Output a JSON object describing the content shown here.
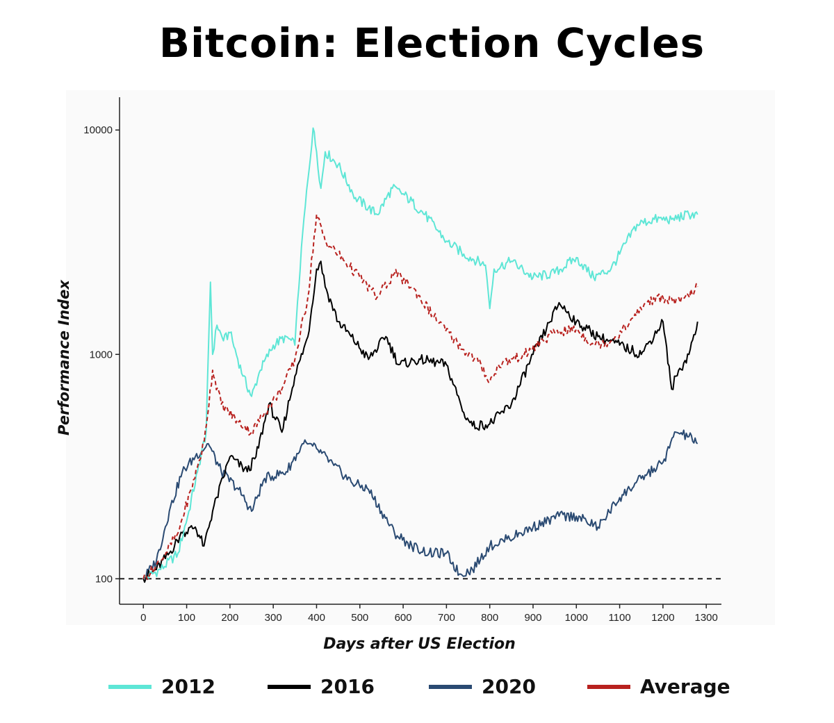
{
  "title": "Bitcoin: Election Cycles",
  "colors": {
    "2012": "#5ee6d6",
    "2016": "#000000",
    "2020": "#2a4a72",
    "Average": "#b8211e"
  },
  "legend": [
    {
      "name": "2012",
      "color": "#5ee6d6"
    },
    {
      "name": "2016",
      "color": "#000000"
    },
    {
      "name": "2020",
      "color": "#2a4a72"
    },
    {
      "name": "Average",
      "color": "#b8211e"
    }
  ],
  "chart_data": {
    "type": "line",
    "xlabel": "Days after US Election",
    "ylabel": "Performance Index",
    "xlim": [
      -55,
      1335
    ],
    "ylim": [
      77,
      14000
    ],
    "yscale": "log",
    "xticks": [
      0,
      100,
      200,
      300,
      400,
      500,
      600,
      700,
      800,
      900,
      1000,
      1100,
      1200,
      1300
    ],
    "yticks": [
      100,
      1000,
      10000
    ],
    "reference_line": {
      "y": 100,
      "style": "dashed"
    },
    "grid": false,
    "series": [
      {
        "name": "2012",
        "x": [
          0,
          40,
          80,
          105,
          125,
          145,
          155,
          160,
          170,
          185,
          200,
          230,
          250,
          270,
          300,
          330,
          350,
          365,
          380,
          392,
          400,
          410,
          420,
          450,
          490,
          520,
          540,
          575,
          600,
          650,
          700,
          740,
          790,
          800,
          810,
          850,
          900,
          950,
          1000,
          1040,
          1080,
          1100,
          1140,
          1180,
          1220,
          1260,
          1280
        ],
        "y": [
          100,
          110,
          130,
          200,
          300,
          450,
          2100,
          1000,
          1350,
          1150,
          1250,
          800,
          650,
          850,
          1100,
          1200,
          1100,
          3000,
          6000,
          10200,
          8000,
          5500,
          8000,
          7000,
          5000,
          4500,
          4200,
          5500,
          5200,
          4200,
          3200,
          2800,
          2500,
          1600,
          2400,
          2600,
          2200,
          2300,
          2700,
          2200,
          2400,
          2800,
          3800,
          4000,
          4000,
          4200,
          4200
        ]
      },
      {
        "name": "2016",
        "x": [
          0,
          30,
          60,
          90,
          120,
          140,
          160,
          200,
          240,
          260,
          290,
          320,
          350,
          380,
          400,
          410,
          420,
          450,
          480,
          520,
          560,
          590,
          640,
          700,
          740,
          760,
          800,
          850,
          900,
          940,
          960,
          1000,
          1050,
          1100,
          1150,
          1200,
          1220,
          1230,
          1260,
          1280
        ],
        "y": [
          100,
          110,
          130,
          160,
          170,
          140,
          200,
          350,
          300,
          350,
          600,
          450,
          800,
          1200,
          2400,
          2600,
          2000,
          1400,
          1200,
          950,
          1200,
          900,
          950,
          900,
          550,
          480,
          490,
          600,
          1000,
          1400,
          1700,
          1400,
          1200,
          1100,
          1000,
          1400,
          700,
          800,
          1000,
          1400
        ]
      },
      {
        "name": "2020",
        "x": [
          0,
          30,
          60,
          90,
          120,
          150,
          180,
          220,
          250,
          280,
          330,
          370,
          400,
          440,
          480,
          520,
          550,
          580,
          620,
          660,
          700,
          730,
          760,
          800,
          840,
          900,
          960,
          1000,
          1050,
          1100,
          1150,
          1200,
          1230,
          1260,
          1280
        ],
        "y": [
          100,
          120,
          200,
          300,
          350,
          400,
          300,
          250,
          200,
          280,
          300,
          400,
          380,
          320,
          270,
          250,
          200,
          160,
          140,
          130,
          130,
          105,
          110,
          140,
          150,
          170,
          190,
          190,
          170,
          230,
          280,
          330,
          450,
          430,
          400
        ]
      },
      {
        "name": "Average",
        "x": [
          0,
          40,
          80,
          110,
          140,
          160,
          180,
          220,
          250,
          280,
          320,
          350,
          380,
          400,
          420,
          450,
          500,
          540,
          580,
          620,
          680,
          740,
          780,
          800,
          820,
          880,
          950,
          1000,
          1040,
          1080,
          1120,
          1160,
          1200,
          1240,
          1280
        ],
        "y": [
          100,
          120,
          160,
          250,
          400,
          850,
          600,
          500,
          450,
          550,
          700,
          950,
          1800,
          4200,
          3200,
          2800,
          2200,
          1800,
          2300,
          2000,
          1400,
          1050,
          900,
          750,
          900,
          1000,
          1250,
          1300,
          1100,
          1150,
          1350,
          1700,
          1800,
          1700,
          2000
        ],
        "style": "dashed"
      }
    ]
  }
}
